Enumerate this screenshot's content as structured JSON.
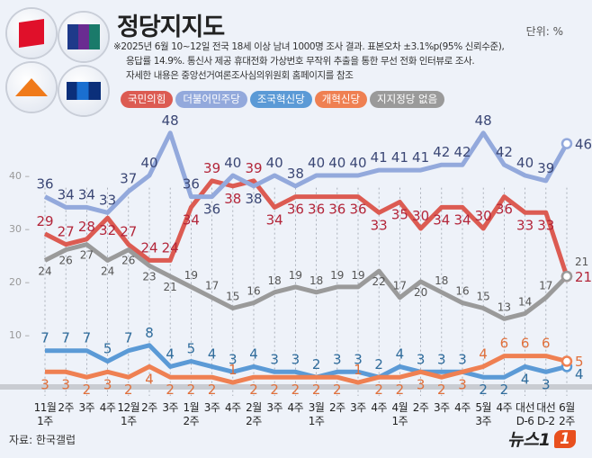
{
  "header": {
    "title": "정당지지도",
    "unit": "단위: %",
    "notes": [
      "※2025년 6월 10~12일 전국 18세 이상 남녀 1000명 조사 결과. 표본오차 ±3.1%p(95% 신뢰수준),",
      "응답률 14.9%. 통신사 제공 휴대전화 가상번호 무작위 추출을 통한 무선 전화 인터뷰로 조사.",
      "자세한 내용은 중앙선거여론조사심의위원회 홈페이지를 참조"
    ]
  },
  "footer": {
    "source": "자료: 한국갤럽",
    "brand": "뉴스1"
  },
  "chart_data": {
    "type": "line",
    "categories": [
      [
        "11월",
        "1주"
      ],
      [
        "2주"
      ],
      [
        "3주"
      ],
      [
        "4주"
      ],
      [
        "12월",
        "1주"
      ],
      [
        "2주"
      ],
      [
        "3주"
      ],
      [
        "1월",
        "2주"
      ],
      [
        "3주"
      ],
      [
        "4주"
      ],
      [
        "2월",
        "2주"
      ],
      [
        "3주"
      ],
      [
        "4주"
      ],
      [
        "3월",
        "1주"
      ],
      [
        "2주"
      ],
      [
        "3주"
      ],
      [
        "4주"
      ],
      [
        "4월",
        "1주"
      ],
      [
        "2주"
      ],
      [
        "3주"
      ],
      [
        "4주"
      ],
      [
        "5월",
        "3주"
      ],
      [
        "4주"
      ],
      [
        "대선",
        "D-6"
      ],
      [
        "대선",
        "D-2"
      ],
      [
        "6월",
        "2주"
      ]
    ],
    "y_ticks": [
      10,
      20,
      30,
      40
    ],
    "ylim": [
      0,
      50
    ],
    "grid": "vertical dashed",
    "legend_position": "top",
    "series": [
      {
        "name": "국민의힘",
        "color": "#dc5b52",
        "label_color": "#b3263a",
        "values": [
          29,
          27,
          28,
          32,
          27,
          24,
          24,
          34,
          39,
          38,
          39,
          34,
          36,
          36,
          36,
          36,
          33,
          35,
          30,
          34,
          34,
          30,
          36,
          33,
          33,
          21
        ]
      },
      {
        "name": "더불어민주당",
        "color": "#93a9dc",
        "label_color": "#3b4775",
        "values": [
          36,
          34,
          34,
          33,
          37,
          40,
          48,
          36,
          36,
          40,
          38,
          40,
          38,
          40,
          40,
          40,
          41,
          41,
          41,
          42,
          42,
          48,
          42,
          40,
          39,
          46
        ]
      },
      {
        "name": "조국혁신당",
        "color": "#5b9ad6",
        "label_color": "#2f6c9c",
        "values": [
          7,
          7,
          7,
          5,
          7,
          8,
          4,
          5,
          4,
          3,
          4,
          3,
          3,
          2,
          3,
          3,
          2,
          4,
          3,
          3,
          3,
          2,
          2,
          4,
          3,
          4
        ]
      },
      {
        "name": "개혁신당",
        "color": "#ef8052",
        "label_color": "#e0703c",
        "values": [
          3,
          3,
          2,
          3,
          2,
          4,
          2,
          2,
          2,
          1,
          2,
          2,
          2,
          2,
          2,
          1,
          2,
          2,
          3,
          2,
          3,
          4,
          6,
          6,
          6,
          5
        ]
      },
      {
        "name": "지지정당 없음",
        "color": "#9a9a9a",
        "label_color": "#555555",
        "values": [
          24,
          26,
          27,
          24,
          26,
          23,
          21,
          19,
          17,
          15,
          16,
          18,
          19,
          18,
          19,
          19,
          22,
          17,
          20,
          18,
          16,
          15,
          13,
          14,
          17,
          21
        ]
      }
    ]
  }
}
